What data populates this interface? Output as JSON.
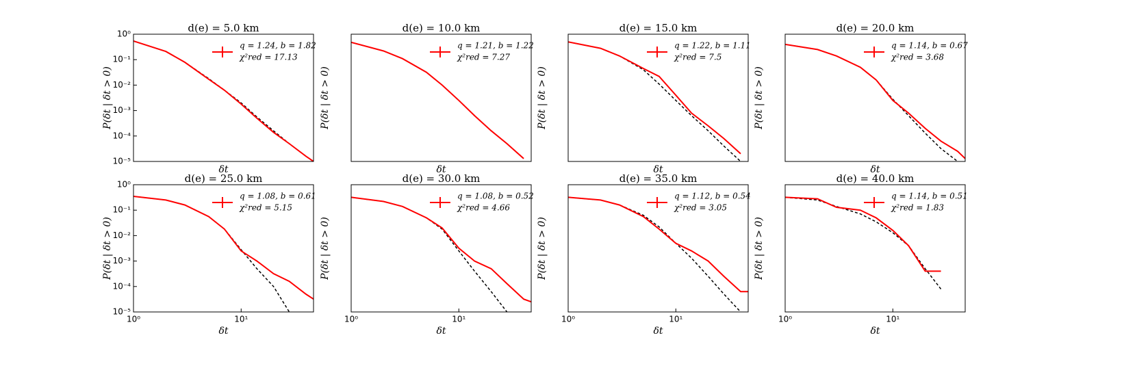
{
  "chart_data": [
    {
      "type": "line",
      "title": "d(e) = 5.0 km",
      "xlabel": "δt",
      "ylabel": "P(δt | δt > 0)",
      "log_x": true,
      "log_y": true,
      "xlim": [
        1,
        47
      ],
      "ylim": [
        1e-05,
        1
      ],
      "yticks": [
        {
          "value": 1,
          "label": "10⁰"
        },
        {
          "value": 0.1,
          "label": "10⁻¹"
        },
        {
          "value": 0.01,
          "label": "10⁻²"
        },
        {
          "value": 0.001,
          "label": "10⁻³"
        },
        {
          "value": 0.0001,
          "label": "10⁻⁴"
        },
        {
          "value": 1e-05,
          "label": "10⁻⁵"
        }
      ],
      "annotation": "χ²red = 17.13",
      "x": [
        1,
        2,
        3,
        5,
        7,
        10,
        14,
        20,
        28,
        40,
        47
      ],
      "series": [
        {
          "name": "q = 1.24, b = 1.82",
          "color": "#ff0000",
          "values": [
            0.54,
            0.21,
            0.079,
            0.017,
            0.0063,
            0.0018,
            0.0005,
            0.00014,
            5e-05,
            1.6e-05,
            1e-05
          ]
        },
        {
          "color": "#000000",
          "dashed": true,
          "values": [
            0.54,
            0.21,
            0.079,
            0.018,
            0.0063,
            0.002,
            0.00056,
            0.00016,
            5e-05,
            1.6e-05,
            1e-05
          ]
        }
      ]
    },
    {
      "type": "line",
      "title": "d(e) = 10.0 km",
      "xlabel": "δt",
      "ylabel": "P(δt | δt > 0)",
      "log_x": true,
      "log_y": true,
      "xlim": [
        1,
        47
      ],
      "ylim": [
        1e-05,
        1
      ],
      "annotation": "χ²red = 7.27",
      "x": [
        1,
        2,
        3,
        5,
        7,
        10,
        14,
        20,
        28,
        40,
        47
      ],
      "series": [
        {
          "name": "q = 1.21, b = 1.22",
          "color": "#ff0000",
          "values": [
            0.48,
            0.22,
            0.11,
            0.032,
            0.01,
            0.0025,
            0.00063,
            0.00016,
            5e-05,
            1.3e-05,
            null
          ]
        },
        {
          "color": "#000000",
          "dashed": true,
          "values": [
            0.48,
            0.22,
            0.11,
            0.032,
            0.01,
            0.0025,
            0.00063,
            0.00016,
            5e-05,
            1.3e-05,
            null
          ]
        }
      ]
    },
    {
      "type": "line",
      "title": "d(e) = 15.0 km",
      "xlabel": "δt",
      "ylabel": "P(δt | δt > 0)",
      "log_x": true,
      "log_y": true,
      "xlim": [
        1,
        47
      ],
      "ylim": [
        1e-05,
        1
      ],
      "annotation": "χ²red = 7.5",
      "x": [
        1,
        2,
        3,
        5,
        7,
        10,
        14,
        20,
        28,
        40,
        47
      ],
      "series": [
        {
          "name": "q = 1.22, b = 1.11",
          "color": "#ff0000",
          "values": [
            0.5,
            0.28,
            0.14,
            0.045,
            0.022,
            0.004,
            0.00079,
            0.00025,
            7.9e-05,
            2e-05,
            null
          ]
        },
        {
          "color": "#000000",
          "dashed": true,
          "values": [
            0.5,
            0.28,
            0.14,
            0.04,
            0.011,
            0.0025,
            0.00063,
            0.00016,
            4e-05,
            1e-05,
            null
          ]
        }
      ]
    },
    {
      "type": "line",
      "title": "d(e) = 20.0 km",
      "xlabel": "δt",
      "ylabel": "P(δt | δt > 0)",
      "log_x": true,
      "log_y": true,
      "xlim": [
        1,
        47
      ],
      "ylim": [
        1e-05,
        1
      ],
      "annotation": "χ²red = 3.68",
      "x": [
        1,
        2,
        3,
        5,
        7,
        10,
        14,
        20,
        28,
        40,
        47
      ],
      "series": [
        {
          "name": "q = 1.14, b = 0.67",
          "color": "#ff0000",
          "values": [
            0.4,
            0.25,
            0.14,
            0.05,
            0.016,
            0.0025,
            0.00079,
            0.0002,
            6.3e-05,
            2.5e-05,
            1.3e-05
          ]
        },
        {
          "color": "#000000",
          "dashed": true,
          "values": [
            0.4,
            0.25,
            0.14,
            0.05,
            0.016,
            0.0028,
            0.00063,
            0.00013,
            3.2e-05,
            1e-05,
            null
          ]
        }
      ]
    },
    {
      "type": "line",
      "title": "d(e) = 25.0 km",
      "xlabel": "δt",
      "ylabel": "P(δt | δt > 0)",
      "log_x": true,
      "log_y": true,
      "xlim": [
        1,
        47
      ],
      "ylim": [
        1e-05,
        1
      ],
      "yticks": [
        {
          "value": 1,
          "label": "10⁰"
        },
        {
          "value": 0.1,
          "label": "10⁻¹"
        },
        {
          "value": 0.01,
          "label": "10⁻²"
        },
        {
          "value": 0.001,
          "label": "10⁻³"
        },
        {
          "value": 0.0001,
          "label": "10⁻⁴"
        },
        {
          "value": 1e-05,
          "label": "10⁻⁵"
        }
      ],
      "xticks": [
        {
          "value": 1,
          "label": "10⁰"
        },
        {
          "value": 10,
          "label": "10¹"
        }
      ],
      "annotation": "χ²red = 5.15",
      "x": [
        1,
        2,
        3,
        5,
        7,
        10,
        14,
        20,
        28,
        40,
        47
      ],
      "series": [
        {
          "name": "q = 1.08, b = 0.61",
          "color": "#ff0000",
          "values": [
            0.35,
            0.25,
            0.16,
            0.056,
            0.018,
            0.0025,
            0.001,
            0.00032,
            0.00016,
            5e-05,
            3.2e-05
          ]
        },
        {
          "color": "#000000",
          "dashed": true,
          "values": [
            0.35,
            0.25,
            0.16,
            0.056,
            0.018,
            0.0028,
            0.0005,
            0.0001,
            1e-05,
            null,
            null
          ]
        }
      ]
    },
    {
      "type": "line",
      "title": "d(e) = 30.0 km",
      "xlabel": "δt",
      "ylabel": "P(δt | δt > 0)",
      "log_x": true,
      "log_y": true,
      "xlim": [
        1,
        47
      ],
      "ylim": [
        1e-05,
        1
      ],
      "xticks": [
        {
          "value": 1,
          "label": "10⁰"
        },
        {
          "value": 10,
          "label": "10¹"
        }
      ],
      "annotation": "χ²red = 4.66",
      "x": [
        1,
        2,
        3,
        5,
        7,
        10,
        14,
        20,
        28,
        40,
        47
      ],
      "series": [
        {
          "name": "q = 1.08, b = 0.52",
          "color": "#ff0000",
          "values": [
            0.32,
            0.22,
            0.14,
            0.05,
            0.02,
            0.0032,
            0.001,
            0.0005,
            0.00013,
            3.2e-05,
            2.5e-05
          ]
        },
        {
          "color": "#000000",
          "dashed": true,
          "values": [
            0.32,
            0.22,
            0.14,
            0.05,
            0.018,
            0.0025,
            0.0004,
            6.3e-05,
            1e-05,
            null,
            null
          ]
        }
      ]
    },
    {
      "type": "line",
      "title": "d(e) = 35.0 km",
      "xlabel": "δt",
      "ylabel": "P(δt | δt > 0)",
      "log_x": true,
      "log_y": true,
      "xlim": [
        1,
        47
      ],
      "ylim": [
        1e-05,
        1
      ],
      "xticks": [
        {
          "value": 1,
          "label": "10⁰"
        },
        {
          "value": 10,
          "label": "10¹"
        }
      ],
      "annotation": "χ²red = 3.05",
      "x": [
        1,
        2,
        3,
        5,
        7,
        10,
        14,
        20,
        28,
        40,
        47
      ],
      "series": [
        {
          "name": "q = 1.12, b = 0.54",
          "color": "#ff0000",
          "values": [
            0.32,
            0.25,
            0.16,
            0.056,
            0.018,
            0.005,
            0.0025,
            0.001,
            0.00025,
            6.3e-05,
            6.3e-05
          ]
        },
        {
          "color": "#000000",
          "dashed": true,
          "values": [
            0.32,
            0.25,
            0.16,
            0.063,
            0.022,
            0.005,
            0.0013,
            0.00025,
            5e-05,
            1e-05,
            null
          ]
        }
      ]
    },
    {
      "type": "line",
      "title": "d(e) = 40.0 km",
      "xlabel": "δt",
      "ylabel": "P(δt | δt > 0)",
      "log_x": true,
      "log_y": true,
      "xlim": [
        1,
        47
      ],
      "ylim": [
        1e-05,
        1
      ],
      "xticks": [
        {
          "value": 1,
          "label": "10⁰"
        },
        {
          "value": 10,
          "label": "10¹"
        }
      ],
      "annotation": "χ²red = 1.83",
      "x": [
        1,
        2,
        3,
        5,
        7,
        10,
        14,
        20,
        28,
        40,
        47
      ],
      "series": [
        {
          "name": "q = 1.14, b = 0.51",
          "color": "#ff0000",
          "values": [
            0.32,
            0.28,
            0.13,
            0.1,
            0.05,
            0.016,
            0.004,
            0.0004,
            0.0004,
            null,
            null
          ]
        },
        {
          "color": "#000000",
          "dashed": true,
          "values": [
            0.32,
            0.25,
            0.14,
            0.071,
            0.035,
            0.013,
            0.004,
            0.0005,
            7.9e-05,
            null,
            null
          ]
        }
      ]
    }
  ]
}
